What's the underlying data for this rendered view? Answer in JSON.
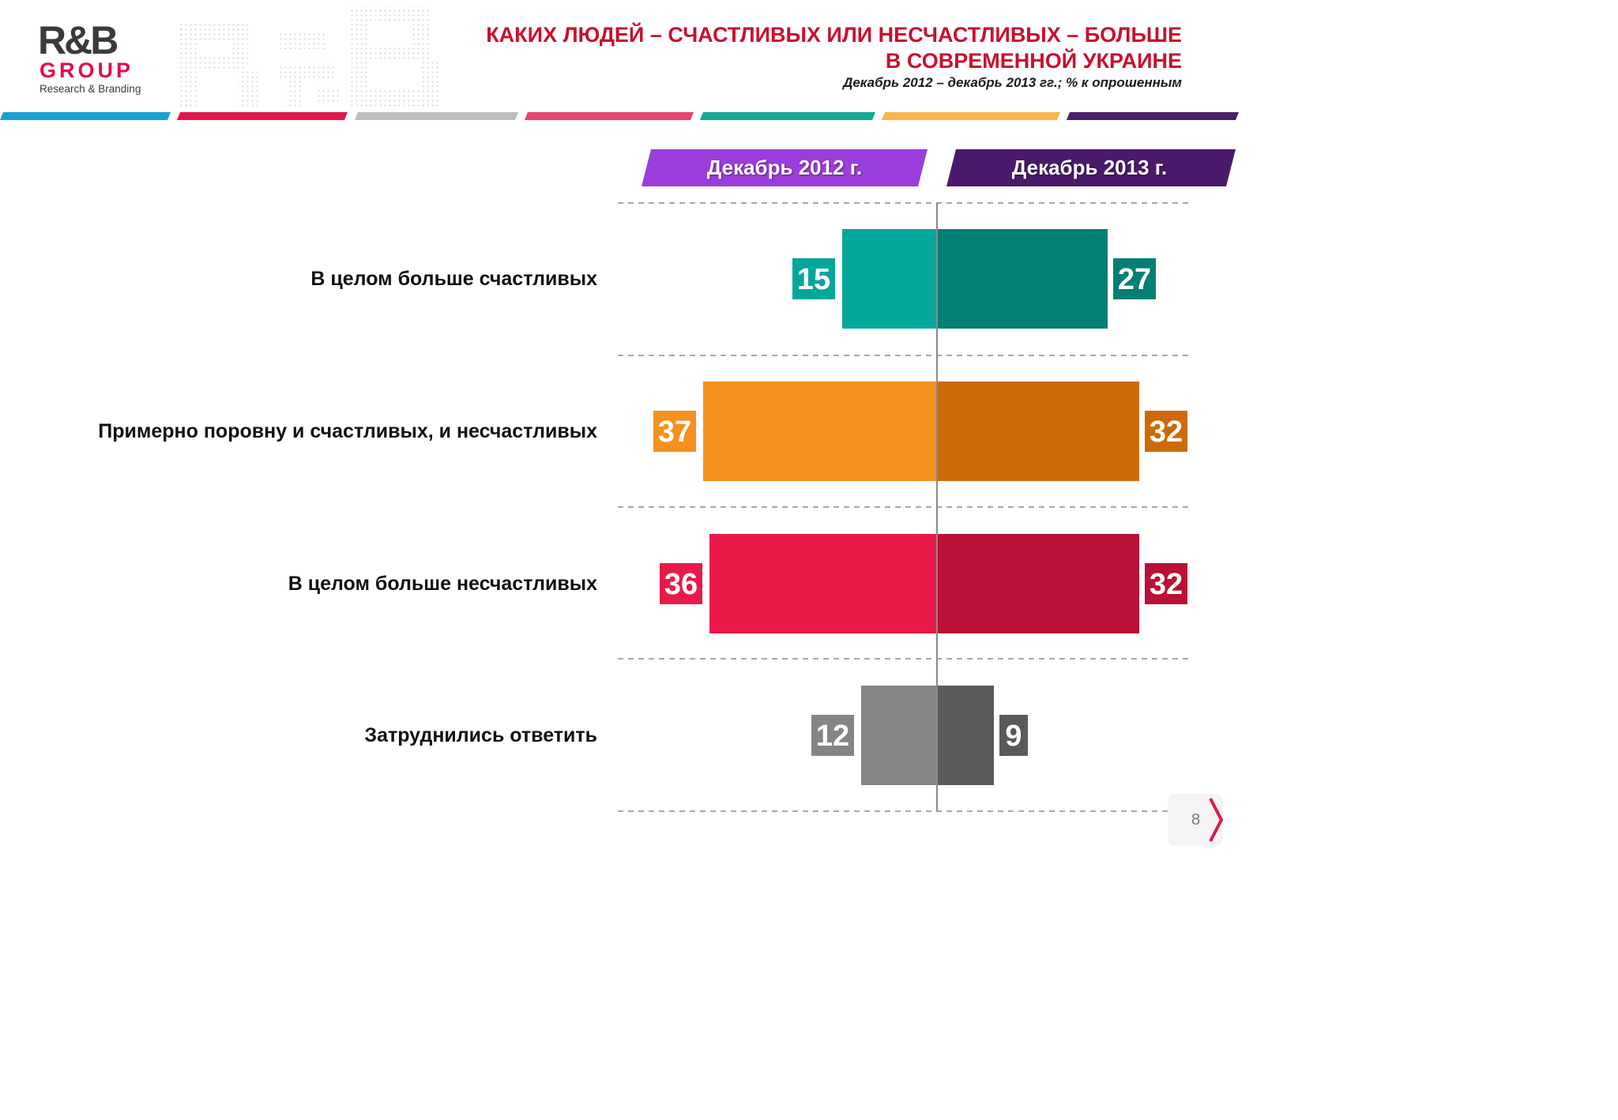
{
  "logo": {
    "brand": "R&B",
    "group": "GROUP",
    "tagline": "Research & Branding"
  },
  "header": {
    "title_line1": "КАКИХ ЛЮДЕЙ – СЧАСТЛИВЫХ ИЛИ НЕСЧАСТЛИВЫХ – БОЛЬШЕ",
    "title_line2": "В СОВРЕМЕННОЙ УКРАИНЕ",
    "subtitle": "Декабрь  2012 – декабрь 2013 гг.; % к опрошенным"
  },
  "colors": {
    "title": "#c8102e",
    "stripes": [
      "#1aa0d8",
      "#e0184a",
      "#bdbdbd",
      "#e8436d",
      "#12a896",
      "#f9b54c",
      "#4a1f6b"
    ],
    "header_2012": "#9b3ddb",
    "header_2013": "#4a1a6b"
  },
  "chart_data": {
    "type": "bar",
    "orientation": "horizontal-diverging",
    "categories": [
      "В целом больше счастливых",
      "Примерно поровну и счастливых, и несчастливых",
      "В целом больше несчастливых",
      "Затруднились ответить"
    ],
    "series": [
      {
        "name": "Декабрь 2012 г.",
        "values": [
          15,
          37,
          36,
          12
        ],
        "colors": [
          "#04a79b",
          "#f6901e",
          "#e91a48",
          "#858487"
        ],
        "label_colors": [
          "#04a79b",
          "#f6901e",
          "#e91a48",
          "#858487"
        ]
      },
      {
        "name": "Декабрь 2013 г.",
        "values": [
          27,
          32,
          32,
          9
        ],
        "colors": [
          "#047f74",
          "#cc6a08",
          "#b91035",
          "#5b595c"
        ],
        "label_colors": [
          "#047f74",
          "#cc6a08",
          "#b91035",
          "#5b595c"
        ]
      }
    ],
    "value_unit": "%",
    "grid": "dashed horizontal separators",
    "legend": "top headers"
  },
  "page_number": "8"
}
